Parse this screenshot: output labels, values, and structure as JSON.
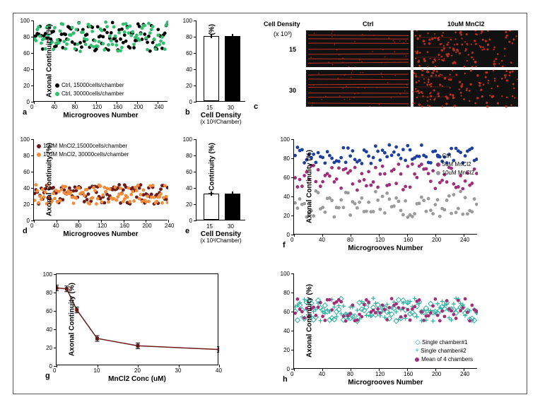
{
  "panels": {
    "a": {
      "letter": "a",
      "ylabel": "Axonal Continuity (%)",
      "xlabel": "Microgrooves Number",
      "ylim": [
        0,
        100
      ],
      "ytick_step": 20,
      "xlim": [
        0,
        260
      ],
      "xticks": [
        0,
        40,
        80,
        120,
        160,
        200,
        240
      ],
      "series": [
        {
          "label": "Ctrl, 15000cells/chamber",
          "color": "#000000"
        },
        {
          "label": "Ctrl, 30000cells/chamber",
          "color": "#2fbf6f"
        }
      ],
      "scatter_band": {
        "center": 80,
        "spread": 18
      }
    },
    "b": {
      "letter": "b",
      "ylabel": "Axonal Continuity (%)",
      "xlabel": "Cell Density",
      "xsub": "(x 10³/Chamber)",
      "ylim": [
        0,
        100
      ],
      "ytick_step": 20,
      "categories": [
        "15",
        "30"
      ],
      "bars": [
        {
          "value": 80,
          "fill": "#ffffff",
          "stroke": "#000000"
        },
        {
          "value": 80,
          "fill": "#000000",
          "stroke": "#000000"
        }
      ]
    },
    "c": {
      "letter": "c",
      "top_labels": {
        "left": "Cell Density",
        "mid": "Ctrl",
        "right": "10uM MnCl2"
      },
      "row_labels": [
        "15",
        "30"
      ],
      "row_label_sub": "(x 10³)",
      "bg": "#111111",
      "axon_color": "#cc3322"
    },
    "d": {
      "letter": "d",
      "ylabel": "Axonal Continuity (%)",
      "xlabel": "Microgrooves Number",
      "ylim": [
        0,
        100
      ],
      "ytick_step": 20,
      "xlim": [
        0,
        240
      ],
      "xticks": [
        0,
        40,
        80,
        120,
        160,
        200,
        240
      ],
      "series": [
        {
          "label": "10uM MnCl2,15000cells/chamber",
          "color": "#6b1a1a"
        },
        {
          "label": "10uM MnCl2, 30000cells/chamber",
          "color": "#f28c3a"
        }
      ],
      "scatter_band": {
        "center": 32,
        "spread": 12
      }
    },
    "e": {
      "letter": "e",
      "ylabel": "Axonal Continuity (%)",
      "xlabel": "Cell Density",
      "xsub": "(x 10³/Chamber)",
      "ylim": [
        0,
        100
      ],
      "ytick_step": 20,
      "categories": [
        "15",
        "30"
      ],
      "bars": [
        {
          "value": 32,
          "fill": "#ffffff",
          "stroke": "#000000"
        },
        {
          "value": 32,
          "fill": "#000000",
          "stroke": "#000000"
        }
      ]
    },
    "f": {
      "letter": "f",
      "ylabel": "Axonal Continuity (%)",
      "xlabel": "Microgrooves Number",
      "ylim": [
        0,
        100
      ],
      "ytick_step": 20,
      "xlim": [
        0,
        260
      ],
      "xticks": [
        0,
        40,
        80,
        120,
        160,
        200,
        240
      ],
      "series": [
        {
          "label": "Ctrl",
          "color": "#1d3f9e",
          "center": 84,
          "spread": 10
        },
        {
          "label": "5uM MnCl2",
          "color": "#a02f7a",
          "center": 60,
          "spread": 14
        },
        {
          "label": "10uM MnCl2",
          "color": "#9a9a9a",
          "center": 32,
          "spread": 14
        }
      ]
    },
    "g": {
      "letter": "g",
      "ylabel": "Axonal Continuity (%)",
      "xlabel": "MnCl2 Conc (uM)",
      "ylim": [
        0,
        100
      ],
      "ytick_step": 20,
      "xlim": [
        0,
        40
      ],
      "xticks": [
        0,
        10,
        20,
        30,
        40
      ],
      "line_color": "#6b1a1a",
      "points": [
        {
          "x": 0,
          "y": 85
        },
        {
          "x": 2.5,
          "y": 84
        },
        {
          "x": 5,
          "y": 61
        },
        {
          "x": 10,
          "y": 30
        },
        {
          "x": 20,
          "y": 22
        },
        {
          "x": 40,
          "y": 18
        }
      ]
    },
    "h": {
      "letter": "h",
      "ylabel": "Axonal Continuity (%)",
      "xlabel": "Microgrooves Number",
      "ylim": [
        0,
        100
      ],
      "ytick_step": 20,
      "xlim": [
        0,
        260
      ],
      "xticks": [
        0,
        40,
        80,
        120,
        160,
        200,
        240
      ],
      "series": [
        {
          "label": "Single chamber#1",
          "color": "#2fb0a0",
          "marker": "diamond"
        },
        {
          "label": "Single chamber#2",
          "color": "#2fb0a0",
          "marker": "plus"
        },
        {
          "label": "Mean of 4 chambers",
          "color": "#a02f7a",
          "marker": "circle"
        }
      ],
      "scatter_band": {
        "center": 62,
        "spread": 12
      }
    }
  },
  "styling": {
    "border_color": "#555555",
    "tick_fontsize": 8,
    "label_fontsize": 10,
    "letter_fontsize": 11
  }
}
